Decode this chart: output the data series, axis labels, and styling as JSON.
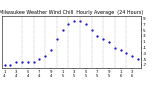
{
  "title": "Milwaukee Weather Wind Chill  Hourly Average  (24 Hours)",
  "hours": [
    1,
    2,
    3,
    4,
    5,
    6,
    7,
    8,
    9,
    10,
    11,
    12,
    13,
    14,
    15,
    16,
    17,
    18,
    19,
    20,
    21,
    22,
    23,
    24
  ],
  "wind_chill": [
    -7,
    -7,
    -6,
    -6,
    -6,
    -6,
    -5,
    -4,
    -2,
    2,
    5,
    7,
    8,
    8,
    7,
    5,
    3,
    2,
    1,
    -1,
    -2,
    -3,
    -4,
    -5
  ],
  "line_color": "#0000cc",
  "bg_color": "#ffffff",
  "grid_color": "#888888",
  "ymin": -8,
  "ymax": 10,
  "yticks": [
    -7,
    -5,
    -3,
    -1,
    1,
    3,
    5,
    7,
    9
  ],
  "ylabel_fontsize": 3.0,
  "xlabel_fontsize": 2.8,
  "title_fontsize": 3.5,
  "marker_size": 1.2,
  "vgrid_positions": [
    4,
    6,
    8,
    10,
    12,
    14,
    16,
    18,
    20,
    22
  ]
}
